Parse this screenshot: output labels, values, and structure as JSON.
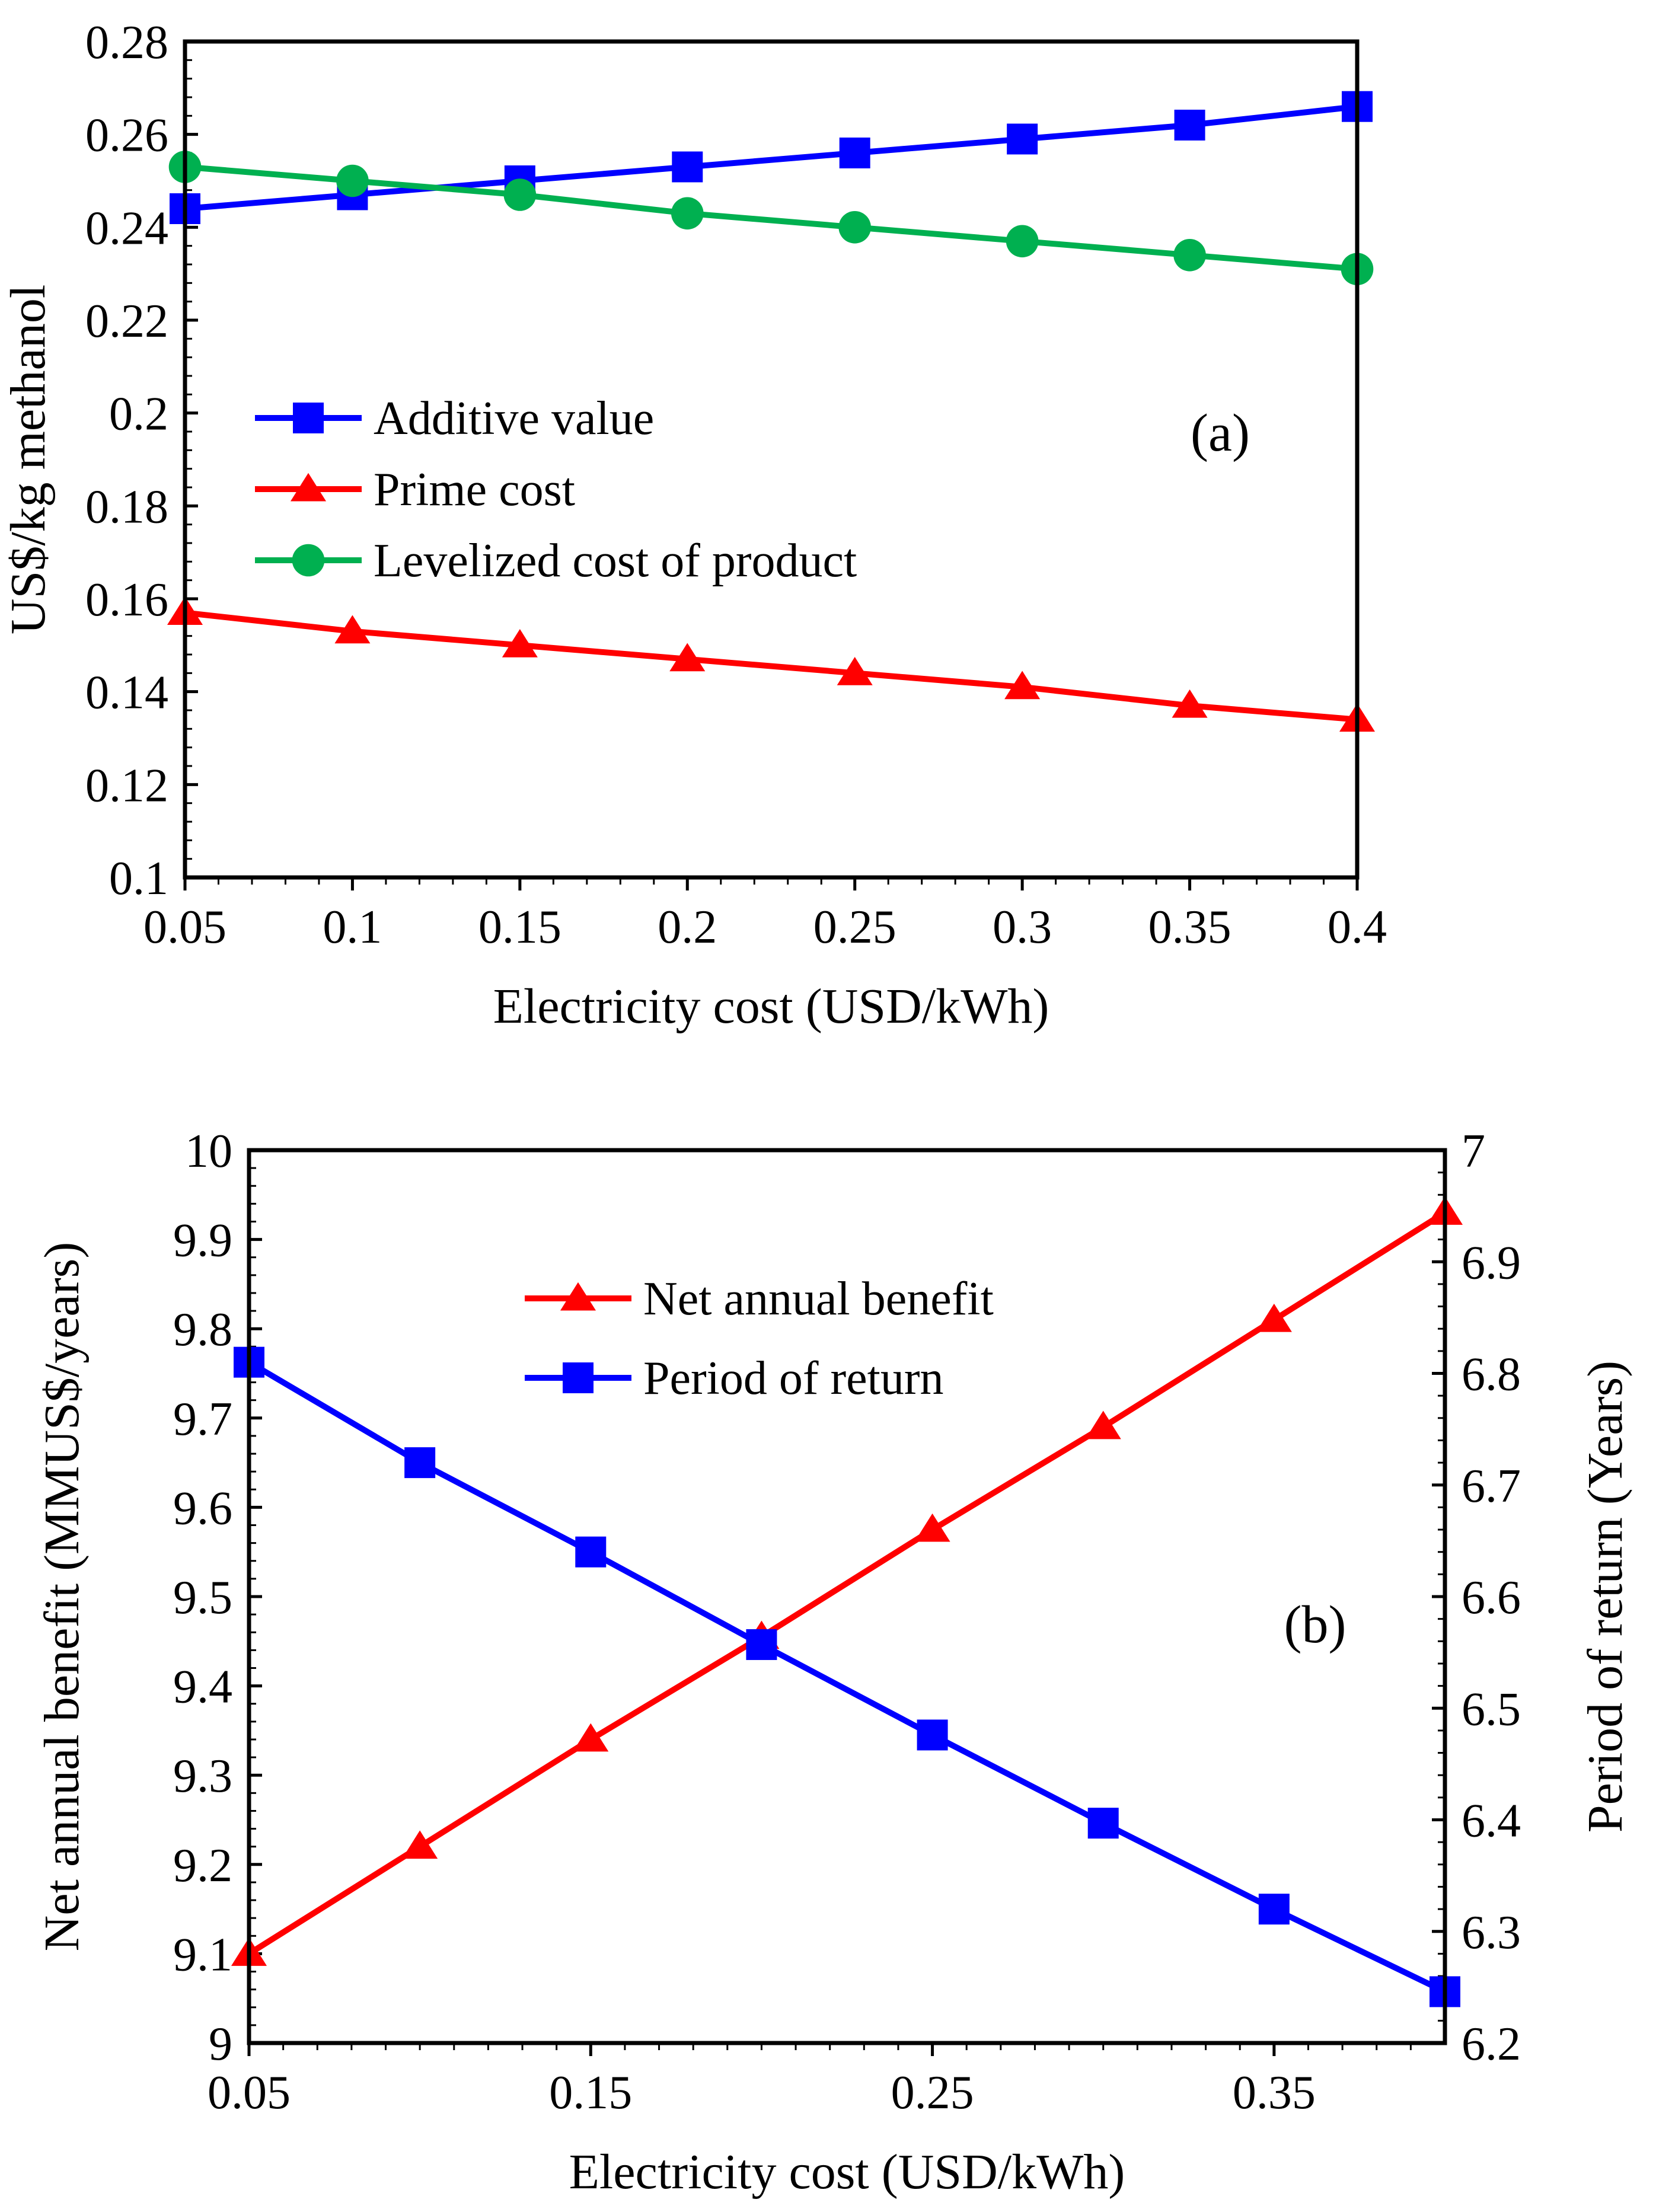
{
  "figure_title": "",
  "chart_data": [
    {
      "type": "line",
      "panel_label": "(a)",
      "x": [
        0.05,
        0.1,
        0.15,
        0.2,
        0.25,
        0.3,
        0.35,
        0.4
      ],
      "xlim": [
        0.05,
        0.4
      ],
      "x_ticks": [
        "0.05",
        "0.1",
        "0.15",
        "0.2",
        "0.25",
        "0.3",
        "0.35",
        "0.4"
      ],
      "x_tick_values": [
        0.05,
        0.1,
        0.15,
        0.2,
        0.25,
        0.3,
        0.35,
        0.4
      ],
      "xlabel": "Electricity cost (USD/kWh)",
      "ylabel": "US$/kg methanol",
      "ylim": [
        0.1,
        0.28
      ],
      "y_ticks": [
        "0.1",
        "0.12",
        "0.14",
        "0.16",
        "0.18",
        "0.2",
        "0.22",
        "0.24",
        "0.26",
        "0.28"
      ],
      "y_tick_values": [
        0.1,
        0.12,
        0.14,
        0.16,
        0.18,
        0.2,
        0.22,
        0.24,
        0.26,
        0.28
      ],
      "legend_position": "center-left",
      "series": [
        {
          "name": "Additive value",
          "color": "#0000ff",
          "marker": "square",
          "values": [
            0.244,
            0.247,
            0.25,
            0.253,
            0.256,
            0.259,
            0.262,
            0.266
          ]
        },
        {
          "name": "Prime cost",
          "color": "#ff0000",
          "marker": "triangle",
          "values": [
            0.157,
            0.153,
            0.15,
            0.147,
            0.144,
            0.141,
            0.137,
            0.134
          ]
        },
        {
          "name": "Levelized cost of product",
          "color": "#00b050",
          "marker": "circle",
          "values": [
            0.253,
            0.25,
            0.247,
            0.243,
            0.24,
            0.237,
            0.234,
            0.231
          ]
        }
      ]
    },
    {
      "type": "line",
      "panel_label": "(b)",
      "x": [
        0.05,
        0.1,
        0.15,
        0.2,
        0.25,
        0.3,
        0.35,
        0.4
      ],
      "xlim": [
        0.05,
        0.4
      ],
      "x_ticks": [
        "0.05",
        "0.15",
        "0.25",
        "0.35"
      ],
      "x_tick_values": [
        0.05,
        0.15,
        0.25,
        0.35
      ],
      "xlabel": "Electricity cost (USD/kWh)",
      "ylabel": "Net annual benefit (MMUS$/years)",
      "ylim": [
        9,
        10
      ],
      "y_ticks": [
        "9",
        "9.1",
        "9.2",
        "9.3",
        "9.4",
        "9.5",
        "9.6",
        "9.7",
        "9.8",
        "9.9",
        "10"
      ],
      "y_tick_values": [
        9,
        9.1,
        9.2,
        9.3,
        9.4,
        9.5,
        9.6,
        9.7,
        9.8,
        9.9,
        10
      ],
      "y2label": "Period of return (Years)",
      "y2lim": [
        6.2,
        7
      ],
      "y2_ticks": [
        "6.2",
        "6.3",
        "6.4",
        "6.5",
        "6.6",
        "6.7",
        "6.8",
        "6.9",
        "7"
      ],
      "y2_tick_values": [
        6.2,
        6.3,
        6.4,
        6.5,
        6.6,
        6.7,
        6.8,
        6.9,
        7
      ],
      "legend_position": "top-center",
      "series": [
        {
          "name": "Net annual benefit",
          "color": "#ff0000",
          "marker": "triangle",
          "axis": "left",
          "values": [
            9.1,
            9.22,
            9.34,
            9.455,
            9.575,
            9.69,
            9.81,
            9.93
          ]
        },
        {
          "name": "Period of return",
          "color": "#0000ff",
          "marker": "square",
          "axis": "right",
          "values": [
            6.81,
            6.72,
            6.64,
            6.557,
            6.476,
            6.397,
            6.32,
            6.246
          ]
        }
      ]
    }
  ]
}
